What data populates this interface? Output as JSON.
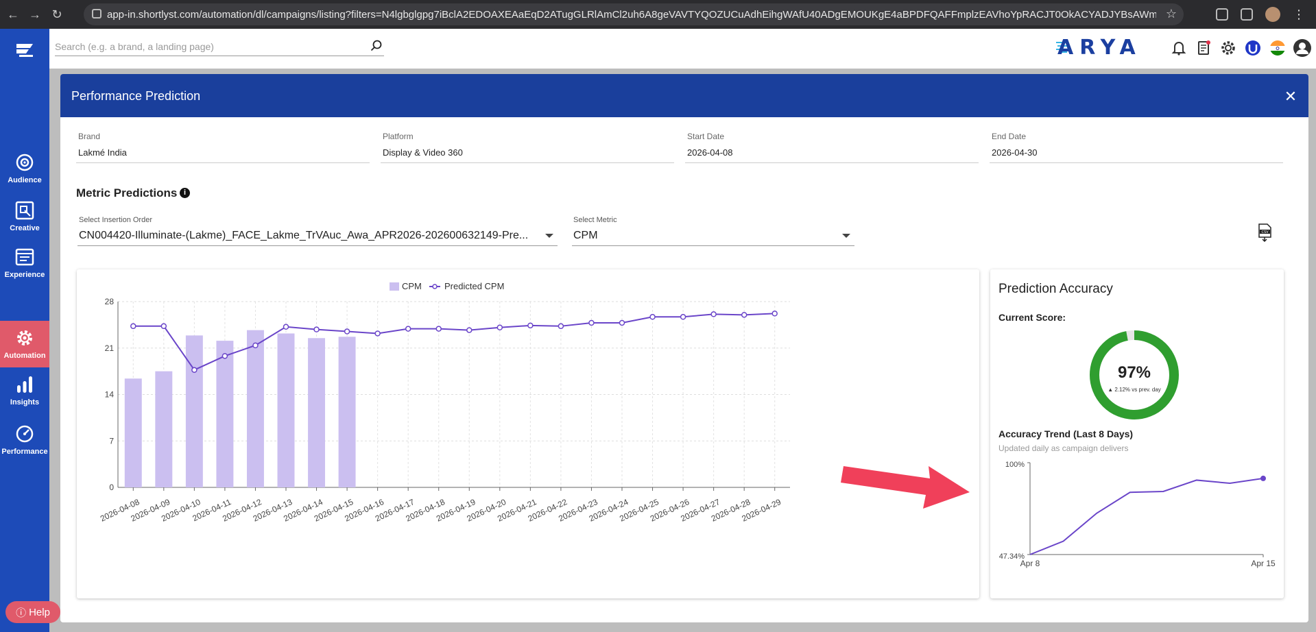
{
  "browser": {
    "url": "app-in.shortlyst.com/automation/dl/campaigns/listing?filters=N4lgbglgpg7iBclA2EDOAXEAaEqD2ATugGLRlAmCl2uh6A8geVAVTYQOZUCuAdhEihgWAfU40ADgEMOUKgE4aBPDFQAFFmplzEAVhoYpRACJT0OkACYADJYBsAWmsAW..."
  },
  "search": {
    "placeholder": "Search (e.g. a brand, a landing page)"
  },
  "brand": {
    "logo_text": "ARYA"
  },
  "sidebar": {
    "items": [
      {
        "label": "Audience"
      },
      {
        "label": "Creative"
      },
      {
        "label": "Experience"
      },
      {
        "label": "Automation"
      },
      {
        "label": "Insights"
      },
      {
        "label": "Performance"
      }
    ]
  },
  "modal": {
    "title": "Performance Prediction",
    "close": "✕",
    "fields": [
      {
        "label": "Brand",
        "value": "Lakmé India"
      },
      {
        "label": "Platform",
        "value": "Display & Video 360"
      },
      {
        "label": "Start Date",
        "value": "2026-04-08"
      },
      {
        "label": "End Date",
        "value": "2026-04-30"
      }
    ],
    "section_title": "Metric Predictions",
    "insertion_order": {
      "label": "Select Insertion Order",
      "value": "CN004420-Illuminate-(Lakme)_FACE_Lakme_TrVAuc_Awa_APR2026-202600632149-Pre..."
    },
    "metric": {
      "label": "Select Metric",
      "value": "CPM"
    },
    "csv_icon": "CSV"
  },
  "accuracy": {
    "title": "Prediction Accuracy",
    "current_label": "Current Score:",
    "score": "97%",
    "score_value": 97,
    "delta": "▲ 2.12% vs prev. day",
    "trend_title": "Accuracy Trend (Last 8 Days)",
    "trend_sub": "Updated daily as campaign delivers",
    "trend_ymax": "100%",
    "trend_ymin": "47.34%",
    "trend_xstart": "Apr 8",
    "trend_xend": "Apr 15",
    "trend_values": [
      47.34,
      55.0,
      71.0,
      83.0,
      83.5,
      90.0,
      88.2,
      91.0
    ],
    "color": "#2f9e2f"
  },
  "help": {
    "label": "Help"
  },
  "chart_data": {
    "type": "bar",
    "title": "",
    "xlabel": "",
    "ylabel": "",
    "ylim": [
      0,
      28
    ],
    "yticks": [
      0,
      7,
      14,
      21,
      28
    ],
    "grid": true,
    "legend": "top",
    "categories": [
      "2026-04-08",
      "2026-04-09",
      "2026-04-10",
      "2026-04-11",
      "2026-04-12",
      "2026-04-13",
      "2026-04-14",
      "2026-04-15",
      "2026-04-16",
      "2026-04-17",
      "2026-04-18",
      "2026-04-19",
      "2026-04-20",
      "2026-04-21",
      "2026-04-22",
      "2026-04-23",
      "2026-04-24",
      "2026-04-25",
      "2026-04-26",
      "2026-04-27",
      "2026-04-28",
      "2026-04-29"
    ],
    "series": [
      {
        "name": "CPM",
        "type": "bar",
        "color": "#cbbff0",
        "values": [
          16.4,
          17.5,
          22.9,
          22.1,
          23.7,
          23.2,
          22.5,
          22.7,
          null,
          null,
          null,
          null,
          null,
          null,
          null,
          null,
          null,
          null,
          null,
          null,
          null,
          null
        ]
      },
      {
        "name": "Predicted CPM",
        "type": "line",
        "color": "#6a45c9",
        "values": [
          24.3,
          24.3,
          17.7,
          19.8,
          21.4,
          24.2,
          23.8,
          23.5,
          23.2,
          23.9,
          23.9,
          23.7,
          24.1,
          24.4,
          24.3,
          24.8,
          24.8,
          25.7,
          25.7,
          26.1,
          26.0,
          26.2
        ]
      }
    ]
  }
}
